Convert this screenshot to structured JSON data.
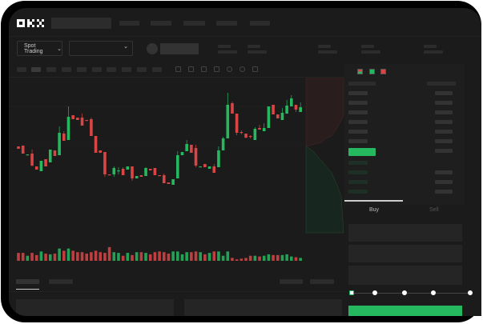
{
  "header": {
    "logo": "OKX"
  },
  "toolbar": {
    "market_select": "Spot Trading",
    "pair_select": ""
  },
  "orderbook": {
    "tabs": [
      "Buy",
      "Sell"
    ],
    "active_tab": "Buy"
  },
  "order_form": {
    "slider_value_percent": 0,
    "slider_stops": [
      0,
      25,
      50,
      75,
      100
    ]
  },
  "colors": {
    "up": "#26b85f",
    "down": "#d94545",
    "background": "#1b1b1b"
  },
  "chart_data": {
    "type": "candlestick",
    "candles": [
      [
        68,
        68,
        65,
        65
      ],
      [
        69,
        69,
        59,
        59
      ],
      [
        57,
        58,
        57,
        58
      ],
      [
        59,
        64,
        43,
        44
      ],
      [
        43,
        43,
        39,
        39
      ],
      [
        37,
        50,
        37,
        50
      ],
      [
        52,
        52,
        43,
        43
      ],
      [
        48,
        64,
        48,
        64
      ],
      [
        63,
        63,
        56,
        56
      ],
      [
        57,
        93,
        57,
        85
      ],
      [
        84,
        87,
        75,
        75
      ],
      [
        76,
        118,
        76,
        105
      ],
      [
        107,
        107,
        102,
        102
      ],
      [
        104,
        104,
        101,
        101
      ],
      [
        104,
        109,
        94,
        94
      ],
      [
        101,
        101,
        100,
        100
      ],
      [
        102,
        104,
        81,
        81
      ],
      [
        81,
        81,
        60,
        60
      ],
      [
        63,
        63,
        60,
        60
      ],
      [
        61,
        61,
        30,
        33
      ],
      [
        33,
        33,
        32,
        32
      ],
      [
        33,
        43,
        30,
        41
      ],
      [
        37,
        42,
        33,
        38
      ],
      [
        40,
        42,
        32,
        32
      ],
      [
        39,
        43,
        39,
        43
      ],
      [
        43,
        43,
        25,
        28
      ],
      [
        28,
        31,
        28,
        31
      ],
      [
        32,
        32,
        30,
        30
      ],
      [
        31,
        42,
        31,
        41
      ],
      [
        40,
        40,
        38,
        38
      ],
      [
        41,
        41,
        32,
        32
      ],
      [
        32,
        32,
        31,
        31
      ],
      [
        32,
        34,
        22,
        22
      ],
      [
        23,
        23,
        21,
        21
      ],
      [
        20,
        27,
        20,
        27
      ],
      [
        28,
        62,
        28,
        57
      ],
      [
        57,
        61,
        57,
        61
      ],
      [
        62,
        76,
        62,
        71
      ],
      [
        70,
        70,
        60,
        60
      ],
      [
        66,
        70,
        42,
        44
      ],
      [
        42,
        43,
        42,
        43
      ],
      [
        46,
        46,
        42,
        42
      ],
      [
        40,
        43,
        40,
        43
      ],
      [
        43,
        46,
        35,
        35
      ],
      [
        42,
        68,
        42,
        63
      ],
      [
        63,
        80,
        63,
        78
      ],
      [
        78,
        135,
        78,
        120
      ],
      [
        122,
        124,
        109,
        109
      ],
      [
        109,
        109,
        82,
        85
      ],
      [
        86,
        88,
        83,
        85
      ],
      [
        84,
        84,
        78,
        79
      ],
      [
        81,
        82,
        78,
        80
      ],
      [
        76,
        92,
        76,
        90
      ],
      [
        91,
        95,
        89,
        89
      ],
      [
        87,
        97,
        87,
        91
      ],
      [
        91,
        118,
        91,
        118
      ],
      [
        120,
        120,
        108,
        108
      ],
      [
        108,
        108,
        103,
        103
      ],
      [
        101,
        116,
        101,
        110
      ],
      [
        109,
        126,
        109,
        119
      ],
      [
        118,
        132,
        118,
        128
      ],
      [
        120,
        120,
        111,
        114
      ],
      [
        111,
        123,
        111,
        117
      ]
    ],
    "volume": [
      11,
      11,
      7,
      11,
      8,
      13,
      10,
      9,
      10,
      17,
      14,
      17,
      14,
      12,
      12,
      10,
      12,
      14,
      12,
      11,
      19,
      12,
      11,
      7,
      11,
      8,
      12,
      12,
      11,
      9,
      12,
      13,
      12,
      10,
      13,
      13,
      9,
      12,
      12,
      13,
      12,
      9,
      11,
      13,
      13,
      7,
      13,
      4,
      2,
      3,
      4,
      7,
      7,
      6,
      7,
      9,
      8,
      8,
      8,
      9,
      6,
      5,
      4
    ]
  }
}
